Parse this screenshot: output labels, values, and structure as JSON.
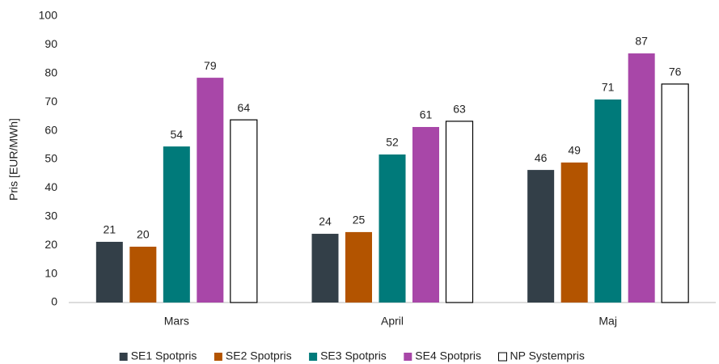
{
  "chart_data": {
    "type": "bar",
    "y_label": "Pris [EUR/MWh]",
    "categories": [
      "Mars",
      "April",
      "Maj"
    ],
    "series": [
      {
        "name": "SE1 Spotpris",
        "color": "#333f48",
        "values": [
          21.2,
          24.0,
          46.3
        ],
        "value_labels": [
          "21",
          "24",
          "46"
        ]
      },
      {
        "name": "SE2 Spotpris",
        "color": "#b35400",
        "values": [
          19.5,
          24.6,
          48.9
        ],
        "value_labels": [
          "20",
          "25",
          "49"
        ]
      },
      {
        "name": "SE3 Spotpris",
        "color": "#007a7a",
        "values": [
          54.5,
          51.7,
          70.9
        ],
        "value_labels": [
          "54",
          "52",
          "71"
        ]
      },
      {
        "name": "SE4 Spotpris",
        "color": "#a847a8",
        "values": [
          78.5,
          61.3,
          87.0
        ],
        "value_labels": [
          "79",
          "61",
          "87"
        ]
      },
      {
        "name": "NP Systempris",
        "color": "#ffffff",
        "values": [
          63.8,
          63.3,
          76.3
        ],
        "value_labels": [
          "64",
          "63",
          "76"
        ]
      }
    ],
    "ylim": [
      0,
      100
    ],
    "yticks": [
      0,
      10,
      20,
      30,
      40,
      50,
      60,
      70,
      80,
      90,
      100
    ],
    "grid": false,
    "legend": "bottom"
  }
}
